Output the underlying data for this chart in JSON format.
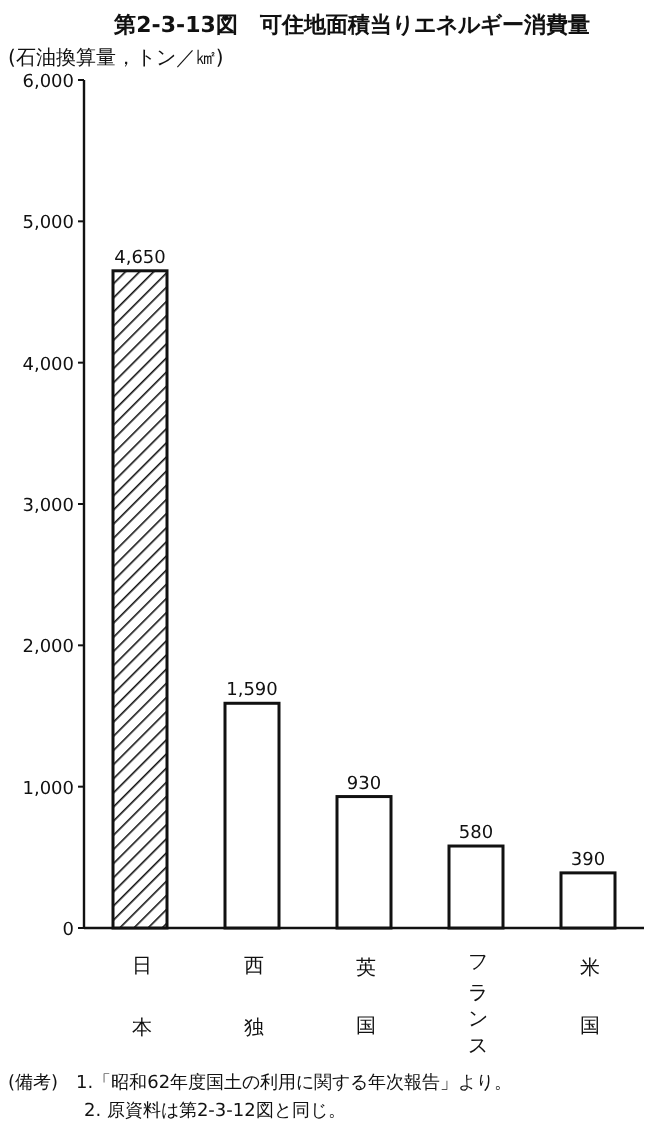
{
  "chart_data": {
    "type": "bar",
    "title": "第2-3-13図　可住地面積当りエネルギー消費量",
    "ylabel": "(石油換算量，トン／㎢)",
    "categories": [
      "日本",
      "西独",
      "英国",
      "フランス",
      "米国"
    ],
    "values": [
      4650,
      1590,
      930,
      580,
      390
    ],
    "value_labels": [
      "4,650",
      "1,590",
      "930",
      "580",
      "390"
    ],
    "colors": [
      "#111111",
      "#ffffff",
      "#ffffff",
      "#ffffff",
      "#ffffff"
    ],
    "ylim": [
      0,
      6000
    ],
    "yticks": [
      {
        "value": 0,
        "label": "0"
      },
      {
        "value": 1000,
        "label": "1,000"
      },
      {
        "value": 2000,
        "label": "2,000"
      },
      {
        "value": 3000,
        "label": "3,000"
      },
      {
        "value": 4000,
        "label": "4,000"
      },
      {
        "value": 5000,
        "label": "5,000"
      },
      {
        "value": 6000,
        "label": "6,000"
      }
    ],
    "annotations": [
      "(備考)　1.「昭和62年度国土の利用に関する年次報告」より。",
      "2. 原資料は第2-3-12図と同じ。"
    ]
  }
}
